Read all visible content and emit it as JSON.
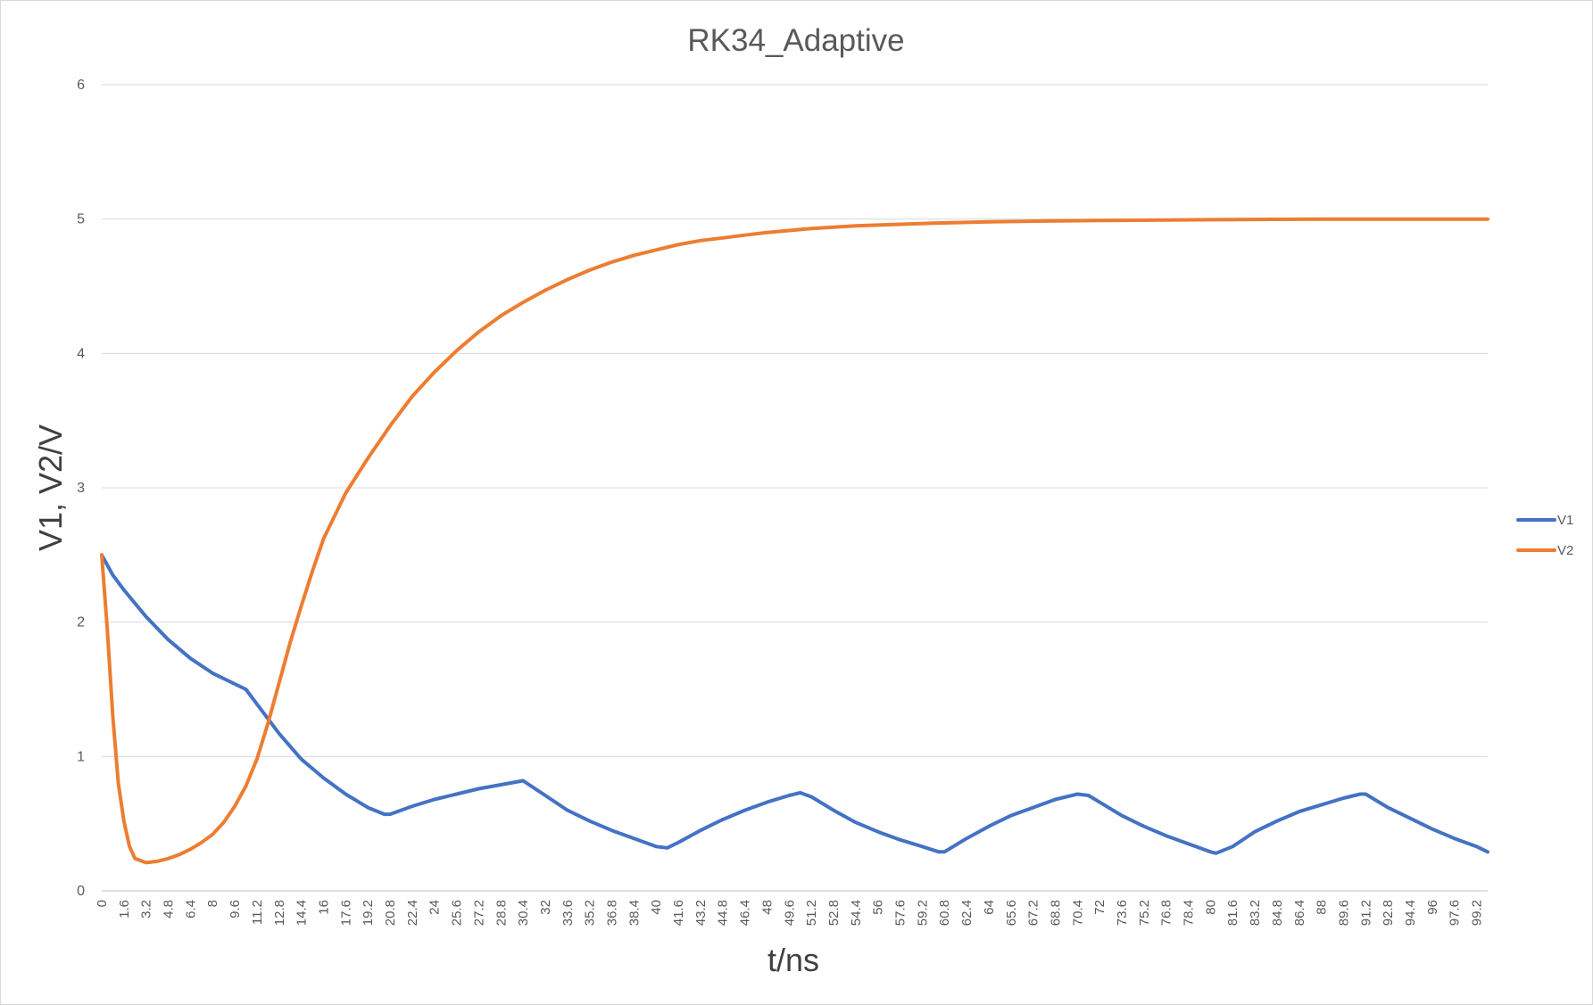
{
  "chart_data": {
    "type": "line",
    "title": "RK34_Adaptive",
    "xlabel": "t/ns",
    "ylabel": "V1, V2/V",
    "xlim": [
      0,
      100
    ],
    "ylim": [
      0,
      6
    ],
    "y_ticks": [
      0,
      1,
      2,
      3,
      4,
      5,
      6
    ],
    "x_ticks": [
      "0",
      "1.6",
      "3.2",
      "4.8",
      "6.4",
      "8",
      "9.6",
      "11.2",
      "12.8",
      "14.4",
      "16",
      "17.6",
      "19.2",
      "20.8",
      "22.4",
      "24",
      "25.6",
      "27.2",
      "28.8",
      "30.4",
      "32",
      "33.6",
      "35.2",
      "36.8",
      "38.4",
      "40",
      "41.6",
      "43.2",
      "44.8",
      "46.4",
      "48",
      "49.6",
      "51.2",
      "52.8",
      "54.4",
      "56",
      "57.6",
      "59.2",
      "60.8",
      "62.4",
      "64",
      "65.6",
      "67.2",
      "68.8",
      "70.4",
      "72",
      "73.6",
      "75.2",
      "76.8",
      "78.4",
      "80",
      "81.6",
      "83.2",
      "84.8",
      "86.4",
      "88",
      "89.6",
      "91.2",
      "92.8",
      "94.4",
      "96",
      "97.6",
      "99.2"
    ],
    "grid": "horizontal",
    "legend_position": "right",
    "colors": {
      "V1": "#4472c4",
      "V2": "#ed7d31"
    },
    "series": [
      {
        "name": "V1",
        "x": [
          0,
          0.8,
          1.6,
          2.4,
          3.2,
          4.8,
          6.4,
          8,
          9.6,
          10.4,
          11.2,
          12.8,
          14.4,
          16,
          17.6,
          19.2,
          20.4,
          20.8,
          22.4,
          24,
          25.6,
          27.2,
          28.8,
          30.4,
          32,
          33.6,
          35.2,
          36.8,
          38.4,
          40,
          40.8,
          41.6,
          43.2,
          44.8,
          46.4,
          48,
          49.6,
          50.4,
          51.2,
          52.8,
          54.4,
          56,
          57.6,
          59.2,
          60.4,
          60.8,
          62.4,
          64,
          65.6,
          67.2,
          68.8,
          70.4,
          71.2,
          72,
          73.6,
          75.2,
          76.8,
          78.4,
          80,
          80.4,
          81.6,
          83.2,
          84.8,
          86.4,
          88,
          89.6,
          90.8,
          91.2,
          92.8,
          94.4,
          96,
          97.6,
          99.2,
          100
        ],
        "values": [
          2.5,
          2.35,
          2.24,
          2.14,
          2.04,
          1.87,
          1.73,
          1.62,
          1.54,
          1.5,
          1.39,
          1.17,
          0.98,
          0.84,
          0.72,
          0.62,
          0.57,
          0.57,
          0.63,
          0.68,
          0.72,
          0.76,
          0.79,
          0.82,
          0.71,
          0.6,
          0.52,
          0.45,
          0.39,
          0.33,
          0.32,
          0.36,
          0.45,
          0.53,
          0.6,
          0.66,
          0.71,
          0.73,
          0.7,
          0.6,
          0.51,
          0.44,
          0.38,
          0.33,
          0.29,
          0.29,
          0.39,
          0.48,
          0.56,
          0.62,
          0.68,
          0.72,
          0.71,
          0.66,
          0.56,
          0.48,
          0.41,
          0.35,
          0.29,
          0.28,
          0.33,
          0.44,
          0.52,
          0.59,
          0.64,
          0.69,
          0.72,
          0.72,
          0.62,
          0.54,
          0.46,
          0.39,
          0.33,
          0.29
        ]
      },
      {
        "name": "V2",
        "x": [
          0,
          0.4,
          0.8,
          1.2,
          1.6,
          2,
          2.4,
          3.2,
          4,
          4.8,
          5.6,
          6.4,
          7.2,
          8,
          8.8,
          9.6,
          10.4,
          11.2,
          12,
          12.8,
          13.6,
          14.4,
          15.2,
          16,
          17.6,
          19.2,
          20.8,
          22.4,
          24,
          25.6,
          27.2,
          28.8,
          30.4,
          32,
          33.6,
          35.2,
          36.8,
          38.4,
          40,
          41.6,
          43.2,
          44.8,
          46.4,
          48,
          49.6,
          51.2,
          52.8,
          54.4,
          56,
          60,
          64,
          68,
          72,
          80,
          88,
          100
        ],
        "values": [
          2.5,
          1.95,
          1.3,
          0.8,
          0.52,
          0.33,
          0.24,
          0.21,
          0.22,
          0.24,
          0.27,
          0.31,
          0.36,
          0.42,
          0.51,
          0.63,
          0.78,
          0.98,
          1.25,
          1.55,
          1.85,
          2.12,
          2.38,
          2.62,
          2.96,
          3.22,
          3.46,
          3.68,
          3.86,
          4.02,
          4.16,
          4.28,
          4.38,
          4.47,
          4.55,
          4.62,
          4.68,
          4.73,
          4.77,
          4.81,
          4.84,
          4.86,
          4.88,
          4.9,
          4.915,
          4.93,
          4.94,
          4.95,
          4.955,
          4.97,
          4.98,
          4.985,
          4.99,
          4.995,
          5.0,
          5.0
        ]
      }
    ]
  }
}
